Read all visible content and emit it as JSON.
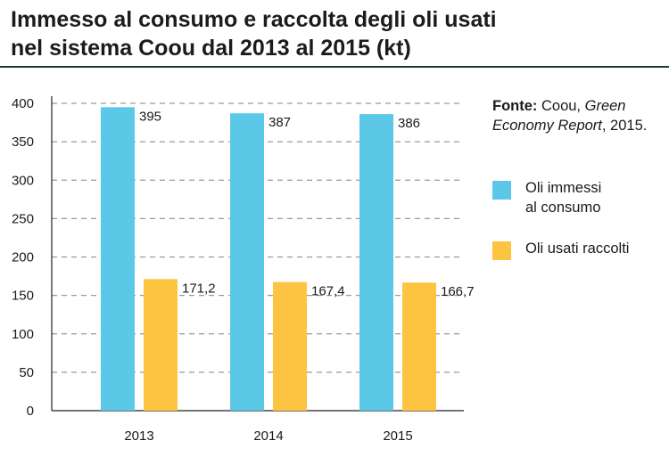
{
  "title_lines": [
    "Immesso al consumo e raccolta degli oli usati",
    "nel sistema Coou dal 2013 al 2015 (kt)"
  ],
  "source": {
    "label": "Fonte:",
    "text_before": " Coou, ",
    "italic": "Green Economy Report",
    "text_after": ", 2015."
  },
  "chart_data": {
    "type": "bar",
    "title": "Immesso al consumo e raccolta degli oli usati nel sistema Coou dal 2013 al 2015 (kt)",
    "categories": [
      "2013",
      "2014",
      "2015"
    ],
    "series": [
      {
        "name": "Oli immessi al consumo",
        "name_lines": [
          "Oli immessi",
          "al consumo"
        ],
        "values": [
          395,
          387,
          386
        ],
        "labels": [
          "395",
          "387",
          "386"
        ],
        "color": "#5bc8e8"
      },
      {
        "name": "Oli usati raccolti",
        "name_lines": [
          "Oli usati raccolti"
        ],
        "values": [
          171.2,
          167.4,
          166.7
        ],
        "labels": [
          "171,2",
          "167,4",
          "166,7"
        ],
        "color": "#fcc440"
      }
    ],
    "ylim": [
      0,
      400
    ],
    "yticks": [
      0,
      50,
      100,
      150,
      200,
      250,
      300,
      350,
      400
    ],
    "xlabel": "",
    "ylabel": "",
    "grid": true,
    "grid_style": "dashed",
    "legend": "right"
  }
}
